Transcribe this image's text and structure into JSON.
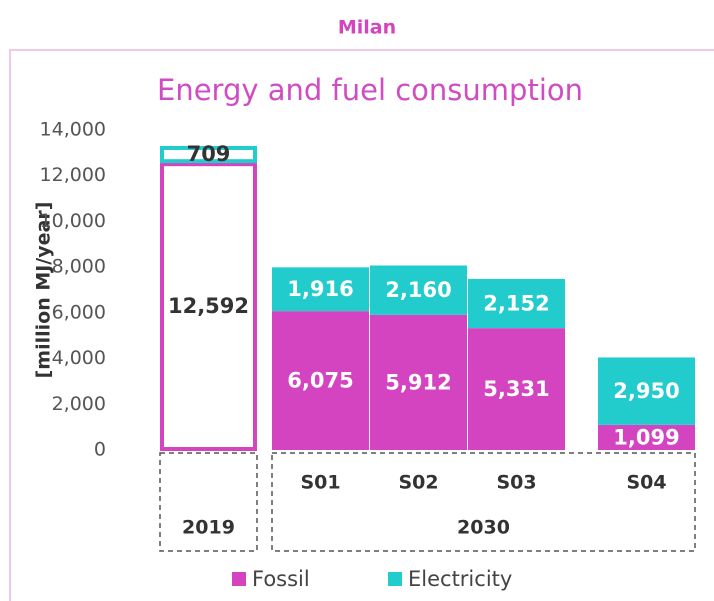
{
  "chart_data": {
    "type": "stacked_bar",
    "header": "Milan",
    "title": "Energy and fuel consumption",
    "ylabel": "[million MJ/year]",
    "categories": [
      null,
      "S01",
      "S02",
      "S03",
      "S04"
    ],
    "groups": [
      {
        "name": "2019",
        "span": 1
      },
      {
        "name": "2030",
        "span": 4
      }
    ],
    "series": [
      {
        "name": "Fossil",
        "color": "#d444c0",
        "values": [
          12592,
          6075,
          5912,
          5331,
          1099
        ],
        "value_labels": [
          "12,592",
          "6,075",
          "5,912",
          "5,331",
          "1,099"
        ]
      },
      {
        "name": "Electricity",
        "color": "#22cccc",
        "values": [
          709,
          1916,
          2160,
          2152,
          2950
        ],
        "value_labels": [
          "709",
          "1,916",
          "2,160",
          "2,152",
          "2,950"
        ]
      }
    ],
    "ylim": [
      0,
      14000
    ],
    "yticks": [
      0,
      {
        "value": 2000,
        "label": "2,000"
      },
      {
        "value": 4000,
        "label": "4,000"
      },
      {
        "value": 6000,
        "label": "6,000"
      },
      {
        "value": 8000,
        "label": "8,000"
      },
      {
        "value": 10000,
        "label": "10,000"
      },
      {
        "value": 12000,
        "label": "12,000"
      },
      {
        "value": 14000,
        "label": "14,000"
      }
    ]
  }
}
